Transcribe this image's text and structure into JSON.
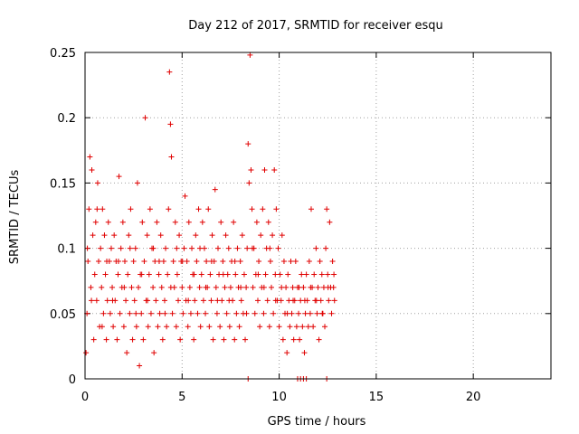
{
  "chart_data": {
    "type": "scatter",
    "title": "Day 212 of 2017, SRMTID for receiver esqu",
    "xlabel": "GPS time / hours",
    "ylabel": "SRMTID / TECUs",
    "xlim": [
      0,
      24
    ],
    "ylim": [
      0,
      0.25
    ],
    "x_ticks": [
      0,
      5,
      10,
      15,
      20
    ],
    "x_tick_labels": [
      "0",
      "5",
      "10",
      "15",
      "20"
    ],
    "y_ticks": [
      0,
      0.05,
      0.1,
      0.15,
      0.2,
      0.25
    ],
    "y_tick_labels": [
      "0",
      "0.05",
      "0.1",
      "0.15",
      "0.2",
      "0.25"
    ],
    "grid": true,
    "marker": "+",
    "color": "#e00000",
    "series": [
      {
        "name": "SRMTID",
        "points": [
          [
            0.05,
            0.02
          ],
          [
            0.1,
            0.05
          ],
          [
            0.15,
            0.09
          ],
          [
            0.2,
            0.13
          ],
          [
            0.25,
            0.17
          ],
          [
            0.3,
            0.07
          ],
          [
            0.35,
            0.16
          ],
          [
            0.4,
            0.11
          ],
          [
            0.45,
            0.03
          ],
          [
            0.5,
            0.08
          ],
          [
            0.55,
            0.12
          ],
          [
            0.6,
            0.06
          ],
          [
            0.65,
            0.15
          ],
          [
            0.7,
            0.09
          ],
          [
            0.75,
            0.04
          ],
          [
            0.8,
            0.1
          ],
          [
            0.85,
            0.07
          ],
          [
            0.9,
            0.13
          ],
          [
            0.95,
            0.05
          ],
          [
            1.0,
            0.11
          ],
          [
            1.05,
            0.08
          ],
          [
            1.1,
            0.03
          ],
          [
            1.15,
            0.06
          ],
          [
            1.2,
            0.12
          ],
          [
            1.25,
            0.09
          ],
          [
            1.3,
            0.05
          ],
          [
            1.35,
            0.1
          ],
          [
            1.4,
            0.07
          ],
          [
            1.45,
            0.04
          ],
          [
            1.5,
            0.11
          ],
          [
            1.55,
            0.06
          ],
          [
            1.6,
            0.09
          ],
          [
            1.65,
            0.03
          ],
          [
            1.7,
            0.08
          ],
          [
            1.75,
            0.155
          ],
          [
            1.8,
            0.05
          ],
          [
            1.85,
            0.1
          ],
          [
            1.9,
            0.07
          ],
          [
            1.95,
            0.12
          ],
          [
            2.0,
            0.04
          ],
          [
            2.05,
            0.09
          ],
          [
            2.1,
            0.06
          ],
          [
            2.15,
            0.02
          ],
          [
            2.2,
            0.08
          ],
          [
            2.25,
            0.11
          ],
          [
            2.3,
            0.05
          ],
          [
            2.35,
            0.13
          ],
          [
            2.4,
            0.07
          ],
          [
            2.45,
            0.03
          ],
          [
            2.5,
            0.09
          ],
          [
            2.55,
            0.06
          ],
          [
            2.6,
            0.1
          ],
          [
            2.65,
            0.04
          ],
          [
            2.7,
            0.15
          ],
          [
            2.75,
            0.07
          ],
          [
            2.8,
            0.01
          ],
          [
            2.85,
            0.08
          ],
          [
            2.9,
            0.05
          ],
          [
            2.95,
            0.12
          ],
          [
            3.0,
            0.03
          ],
          [
            3.05,
            0.09
          ],
          [
            3.1,
            0.2
          ],
          [
            3.15,
            0.06
          ],
          [
            3.2,
            0.11
          ],
          [
            3.25,
            0.04
          ],
          [
            3.3,
            0.08
          ],
          [
            3.35,
            0.13
          ],
          [
            3.4,
            0.05
          ],
          [
            3.45,
            0.1
          ],
          [
            3.5,
            0.07
          ],
          [
            3.55,
            0.02
          ],
          [
            3.6,
            0.09
          ],
          [
            3.65,
            0.06
          ],
          [
            3.7,
            0.12
          ],
          [
            3.75,
            0.04
          ],
          [
            3.8,
            0.08
          ],
          [
            3.85,
            0.05
          ],
          [
            3.9,
            0.11
          ],
          [
            3.95,
            0.07
          ],
          [
            4.0,
            0.03
          ],
          [
            4.05,
            0.09
          ],
          [
            4.1,
            0.06
          ],
          [
            4.15,
            0.1
          ],
          [
            4.2,
            0.04
          ],
          [
            4.25,
            0.08
          ],
          [
            4.3,
            0.13
          ],
          [
            4.35,
            0.235
          ],
          [
            4.4,
            0.195
          ],
          [
            4.45,
            0.17
          ],
          [
            4.5,
            0.05
          ],
          [
            4.55,
            0.09
          ],
          [
            4.6,
            0.07
          ],
          [
            4.65,
            0.12
          ],
          [
            4.7,
            0.04
          ],
          [
            4.75,
            0.08
          ],
          [
            4.8,
            0.06
          ],
          [
            4.85,
            0.11
          ],
          [
            4.9,
            0.03
          ],
          [
            4.95,
            0.09
          ],
          [
            5.0,
            0.07
          ],
          [
            5.05,
            0.05
          ],
          [
            5.1,
            0.1
          ],
          [
            5.15,
            0.14
          ],
          [
            5.2,
            0.06
          ],
          [
            5.25,
            0.09
          ],
          [
            5.3,
            0.04
          ],
          [
            5.35,
            0.12
          ],
          [
            5.4,
            0.07
          ],
          [
            5.45,
            0.05
          ],
          [
            5.5,
            0.1
          ],
          [
            5.55,
            0.08
          ],
          [
            5.6,
            0.03
          ],
          [
            5.65,
            0.06
          ],
          [
            5.7,
            0.11
          ],
          [
            5.75,
            0.09
          ],
          [
            5.8,
            0.05
          ],
          [
            5.85,
            0.13
          ],
          [
            5.9,
            0.07
          ],
          [
            5.95,
            0.04
          ],
          [
            6.0,
            0.08
          ],
          [
            6.05,
            0.12
          ],
          [
            6.1,
            0.06
          ],
          [
            6.15,
            0.1
          ],
          [
            6.2,
            0.05
          ],
          [
            6.25,
            0.09
          ],
          [
            6.3,
            0.07
          ],
          [
            6.35,
            0.13
          ],
          [
            6.4,
            0.04
          ],
          [
            6.45,
            0.08
          ],
          [
            6.5,
            0.06
          ],
          [
            6.55,
            0.11
          ],
          [
            6.6,
            0.03
          ],
          [
            6.65,
            0.09
          ],
          [
            6.7,
            0.145
          ],
          [
            6.75,
            0.07
          ],
          [
            6.8,
            0.05
          ],
          [
            6.85,
            0.1
          ],
          [
            6.9,
            0.08
          ],
          [
            6.95,
            0.04
          ],
          [
            7.0,
            0.12
          ],
          [
            7.05,
            0.06
          ],
          [
            7.1,
            0.09
          ],
          [
            7.15,
            0.03
          ],
          [
            7.2,
            0.07
          ],
          [
            7.25,
            0.11
          ],
          [
            7.3,
            0.05
          ],
          [
            7.35,
            0.08
          ],
          [
            7.4,
            0.1
          ],
          [
            7.45,
            0.04
          ],
          [
            7.5,
            0.07
          ],
          [
            7.55,
            0.09
          ],
          [
            7.6,
            0.06
          ],
          [
            7.65,
            0.12
          ],
          [
            7.7,
            0.03
          ],
          [
            7.75,
            0.08
          ],
          [
            7.8,
            0.05
          ],
          [
            7.85,
            0.1
          ],
          [
            7.9,
            0.07
          ],
          [
            7.95,
            0.04
          ],
          [
            8.0,
            0.09
          ],
          [
            8.05,
            0.06
          ],
          [
            8.1,
            0.11
          ],
          [
            8.15,
            0.05
          ],
          [
            8.2,
            0.08
          ],
          [
            8.25,
            0.03
          ],
          [
            8.3,
            0.07
          ],
          [
            8.35,
            0.1
          ],
          [
            8.4,
            0.18
          ],
          [
            8.45,
            0.15
          ],
          [
            8.5,
            0.248
          ],
          [
            8.55,
            0.16
          ],
          [
            8.6,
            0.13
          ],
          [
            8.65,
            0.07
          ],
          [
            8.7,
            0.1
          ],
          [
            8.75,
            0.05
          ],
          [
            8.8,
            0.08
          ],
          [
            8.85,
            0.12
          ],
          [
            8.9,
            0.06
          ],
          [
            8.95,
            0.09
          ],
          [
            9.0,
            0.04
          ],
          [
            9.05,
            0.11
          ],
          [
            9.1,
            0.07
          ],
          [
            9.15,
            0.13
          ],
          [
            9.2,
            0.05
          ],
          [
            9.25,
            0.16
          ],
          [
            9.3,
            0.08
          ],
          [
            9.35,
            0.1
          ],
          [
            9.4,
            0.06
          ],
          [
            9.45,
            0.12
          ],
          [
            9.5,
            0.04
          ],
          [
            9.55,
            0.09
          ],
          [
            9.6,
            0.07
          ],
          [
            9.65,
            0.11
          ],
          [
            9.7,
            0.05
          ],
          [
            9.75,
            0.16
          ],
          [
            9.8,
            0.08
          ],
          [
            9.85,
            0.13
          ],
          [
            9.9,
            0.06
          ],
          [
            9.95,
            0.1
          ],
          [
            10.0,
            0.04
          ],
          [
            10.05,
            0.08
          ],
          [
            10.1,
            0.06
          ],
          [
            10.15,
            0.11
          ],
          [
            10.2,
            0.03
          ],
          [
            10.25,
            0.09
          ],
          [
            10.3,
            0.05
          ],
          [
            10.35,
            0.07
          ],
          [
            10.4,
            0.02
          ],
          [
            10.45,
            0.08
          ],
          [
            10.5,
            0.06
          ],
          [
            10.55,
            0.04
          ],
          [
            10.6,
            0.09
          ],
          [
            10.65,
            0.05
          ],
          [
            10.7,
            0.07
          ],
          [
            10.75,
            0.03
          ],
          [
            10.8,
            0.06
          ],
          [
            10.85,
            0.09
          ],
          [
            10.9,
            0.04
          ],
          [
            10.95,
            0.07
          ],
          [
            11.0,
            0.05
          ],
          [
            11.05,
            0.03
          ],
          [
            11.1,
            0.06
          ],
          [
            11.15,
            0.08
          ],
          [
            11.2,
            0.04
          ],
          [
            11.25,
            0.07
          ],
          [
            11.3,
            0.02
          ],
          [
            11.35,
            0.05
          ],
          [
            11.4,
            0.08
          ],
          [
            11.45,
            0.06
          ],
          [
            11.5,
            0.04
          ],
          [
            11.55,
            0.09
          ],
          [
            11.6,
            0.05
          ],
          [
            11.65,
            0.13
          ],
          [
            11.7,
            0.07
          ],
          [
            11.75,
            0.04
          ],
          [
            11.8,
            0.08
          ],
          [
            11.85,
            0.06
          ],
          [
            11.9,
            0.1
          ],
          [
            11.95,
            0.05
          ],
          [
            12.0,
            0.07
          ],
          [
            12.05,
            0.03
          ],
          [
            12.1,
            0.09
          ],
          [
            12.15,
            0.06
          ],
          [
            12.2,
            0.08
          ],
          [
            12.25,
            0.05
          ],
          [
            12.3,
            0.07
          ],
          [
            12.35,
            0.04
          ],
          [
            12.4,
            0.1
          ],
          [
            12.45,
            0.13
          ],
          [
            12.5,
            0.08
          ],
          [
            12.55,
            0.06
          ],
          [
            12.6,
            0.12
          ],
          [
            12.65,
            0.07
          ],
          [
            12.7,
            0.05
          ],
          [
            12.75,
            0.09
          ],
          [
            12.8,
            0.07
          ],
          [
            12.85,
            0.06
          ],
          [
            0.12,
            0.1
          ],
          [
            0.33,
            0.06
          ],
          [
            0.62,
            0.13
          ],
          [
            0.88,
            0.04
          ],
          [
            1.12,
            0.09
          ],
          [
            1.42,
            0.06
          ],
          [
            1.72,
            0.09
          ],
          [
            2.02,
            0.07
          ],
          [
            2.32,
            0.1
          ],
          [
            2.62,
            0.05
          ],
          [
            2.92,
            0.08
          ],
          [
            3.22,
            0.06
          ],
          [
            3.52,
            0.1
          ],
          [
            3.82,
            0.09
          ],
          [
            4.12,
            0.05
          ],
          [
            4.42,
            0.07
          ],
          [
            4.72,
            0.1
          ],
          [
            5.02,
            0.09
          ],
          [
            5.32,
            0.06
          ],
          [
            5.62,
            0.08
          ],
          [
            5.92,
            0.1
          ],
          [
            6.22,
            0.07
          ],
          [
            6.52,
            0.09
          ],
          [
            6.82,
            0.06
          ],
          [
            7.12,
            0.08
          ],
          [
            7.42,
            0.06
          ],
          [
            7.72,
            0.09
          ],
          [
            8.02,
            0.07
          ],
          [
            8.32,
            0.05
          ],
          [
            8.62,
            0.1
          ],
          [
            8.92,
            0.08
          ],
          [
            9.22,
            0.07
          ],
          [
            9.52,
            0.1
          ],
          [
            9.82,
            0.06
          ],
          [
            10.12,
            0.07
          ],
          [
            10.42,
            0.05
          ],
          [
            10.72,
            0.06
          ],
          [
            11.02,
            0.07
          ],
          [
            11.32,
            0.06
          ],
          [
            11.62,
            0.07
          ],
          [
            11.92,
            0.06
          ],
          [
            12.22,
            0.05
          ],
          [
            12.52,
            0.07
          ],
          [
            12.82,
            0.08
          ],
          [
            8.4,
            0
          ],
          [
            10.95,
            0
          ],
          [
            11.1,
            0
          ],
          [
            11.25,
            0
          ],
          [
            11.4,
            0
          ],
          [
            12.45,
            0
          ]
        ]
      }
    ]
  }
}
